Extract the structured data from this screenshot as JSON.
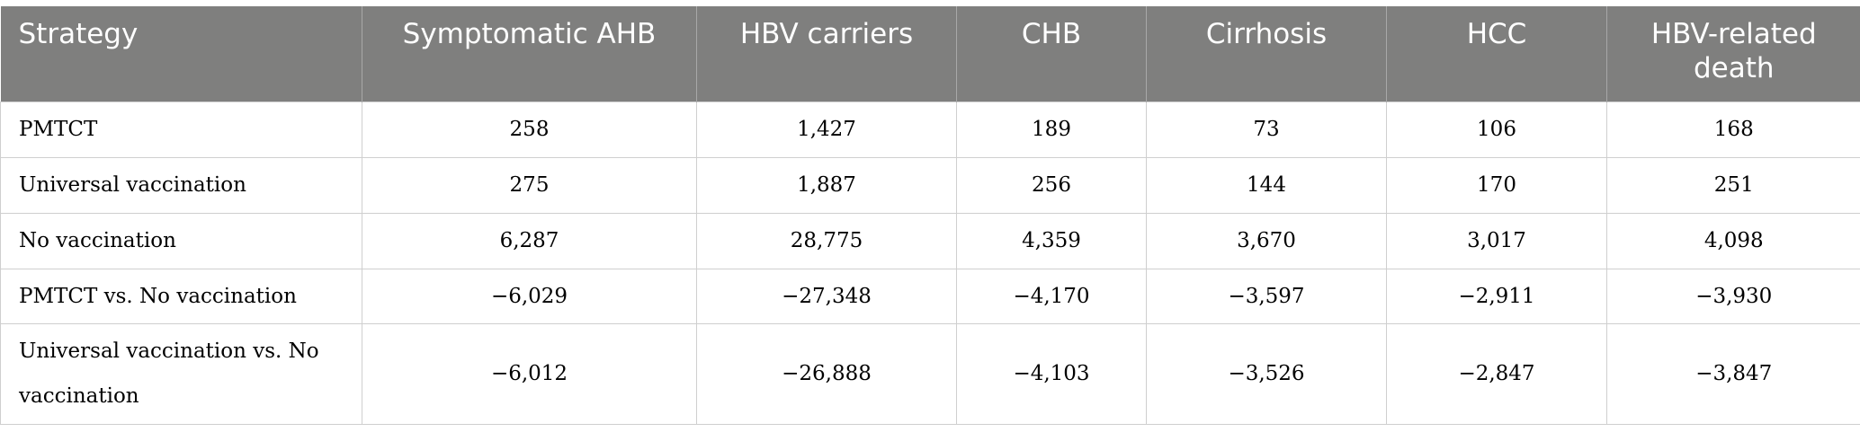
{
  "table": {
    "header": [
      "Strategy",
      "Symptomatic AHB",
      "HBV carriers",
      "CHB",
      "Cirrhosis",
      "HCC",
      "HBV-related death"
    ],
    "rows": [
      [
        "PMTCT",
        "258",
        "1,427",
        "189",
        "73",
        "106",
        "168"
      ],
      [
        "Universal vaccination",
        "275",
        "1,887",
        "256",
        "144",
        "170",
        "251"
      ],
      [
        "No vaccination",
        "6,287",
        "28,775",
        "4,359",
        "3,670",
        "3,017",
        "4,098"
      ],
      [
        "PMTCT vs. No vaccination",
        "−6,029",
        "−27,348",
        "−4,170",
        "−3,597",
        "−2,911",
        "−3,930"
      ],
      [
        "Universal vaccination vs. No vaccination",
        "−6,012",
        "−26,888",
        "−4,103",
        "−3,526",
        "−2,847",
        "−3,847"
      ]
    ]
  }
}
